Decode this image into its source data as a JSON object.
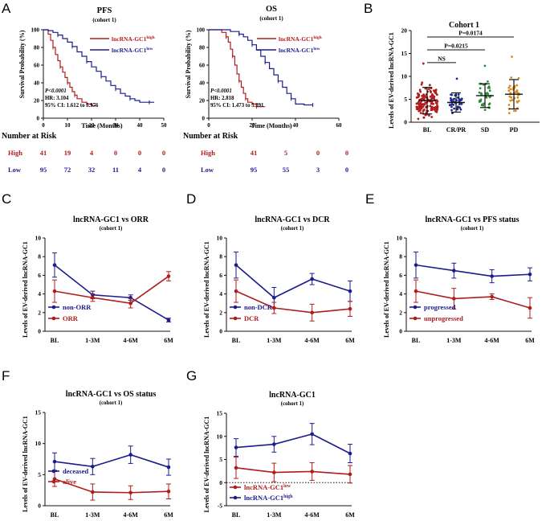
{
  "colors": {
    "red": "#b01c1c",
    "blue": "#1c1c8c",
    "navy": "#1f2a8a",
    "green": "#2e8b3e",
    "orange": "#d98a1e",
    "black": "#111111"
  },
  "panels": {
    "A": {
      "letter": "A",
      "pfs": {
        "title": "PFS",
        "subtitle": "(cohort 1)",
        "ylabel": "Survival Probability (%)",
        "xlabel": "Time (Months)",
        "yticks": [
          "0",
          "20",
          "40",
          "60",
          "80",
          "100"
        ],
        "xticks": [
          "0",
          "10",
          "20",
          "30",
          "40",
          "50"
        ],
        "legend_high": "lncRNA-GC1",
        "legend_high_sup": "high",
        "legend_low": "lncRNA-GC1",
        "legend_low_sup": "low",
        "stat_p": "P<0.0001",
        "stat_hr": "HR: 3.104",
        "stat_ci": "95% CI: 1.612 to 5.976",
        "risk_title": "Number at Risk",
        "risk_high_label": "High",
        "risk_low_label": "Low",
        "risk_high": [
          "41",
          "19",
          "4",
          "0",
          "0",
          "0"
        ],
        "risk_low": [
          "95",
          "72",
          "32",
          "11",
          "4",
          "0"
        ]
      },
      "os": {
        "title": "OS",
        "subtitle": "(cohort 1)",
        "ylabel": "Survival Probability (%)",
        "xlabel": "Time (Months)",
        "yticks": [
          "0",
          "20",
          "40",
          "60",
          "80",
          "100"
        ],
        "xticks": [
          "0",
          "20",
          "40",
          "60"
        ],
        "legend_high": "lncRNA-GC1",
        "legend_high_sup": "high",
        "legend_low": "lncRNA-GC1",
        "legend_low_sup": "low",
        "stat_p": "P<0.0001",
        "stat_hr": "HR: 2.818",
        "stat_ci": "95% CI: 1.473 to 5.391",
        "risk_title": "Number at Risk",
        "risk_high_label": "High",
        "risk_low_label": "Low",
        "risk_high": [
          "41",
          "5",
          "0",
          "0"
        ],
        "risk_low": [
          "95",
          "55",
          "3",
          "0"
        ]
      }
    },
    "B": {
      "letter": "B",
      "title": "Cohort 1",
      "ylabel": "Levels of EV-derived lncRNA-GC1",
      "yticks": [
        "0",
        "5",
        "10",
        "15",
        "20"
      ],
      "groups": [
        "BL",
        "CR/PR",
        "SD",
        "PD"
      ],
      "sig": [
        {
          "label": "P=0.0174"
        },
        {
          "label": "P=0.0215"
        },
        {
          "label": "NS"
        }
      ]
    },
    "C": {
      "letter": "C",
      "title": "lncRNA-GC1 vs ORR",
      "subtitle": "(cohort 1)",
      "legend1": "non-ORR",
      "legend2": "ORR"
    },
    "D": {
      "letter": "D",
      "title": "lncRNA-GC1 vs DCR",
      "subtitle": "(cohort 1)",
      "legend1": "non-DCR",
      "legend2": "DCR"
    },
    "E": {
      "letter": "E",
      "title": "lncRNA-GC1 vs PFS status",
      "subtitle": "(cohort 1)",
      "legend1": "progressed",
      "legend2": "unprogressed"
    },
    "F": {
      "letter": "F",
      "title": "lncRNA-GC1 vs OS status",
      "subtitle": "(cohort 1)",
      "legend1": "deceased",
      "legend2": "alive"
    },
    "G": {
      "letter": "G",
      "title": "lncRNA-GC1",
      "subtitle": "(cohort 1)",
      "legend1": "lncRNA-GC1",
      "legend1_sup": "low",
      "legend2": "lncRNA-GC1",
      "legend2_sup": "high"
    }
  },
  "line_ylabel": "Levels of EV-derived lncRNA-GC1",
  "chart_data": [
    {
      "id": "A-PFS",
      "type": "line",
      "title": "PFS",
      "xlabel": "Time (Months)",
      "ylabel": "Survival Probability (%)",
      "xlim": [
        0,
        50
      ],
      "ylim": [
        0,
        100
      ],
      "series": [
        {
          "name": "lncRNA-GC1 high",
          "color": "red",
          "x": [
            0,
            2,
            3,
            4,
            5,
            6,
            7,
            8,
            9,
            10,
            11,
            12,
            13,
            14,
            16,
            18,
            20,
            22
          ],
          "y": [
            100,
            95,
            88,
            80,
            72,
            65,
            58,
            52,
            46,
            40,
            35,
            30,
            26,
            22,
            18,
            16,
            14,
            14
          ]
        },
        {
          "name": "lncRNA-GC1 low",
          "color": "blue",
          "x": [
            0,
            2,
            4,
            6,
            8,
            10,
            12,
            14,
            16,
            18,
            20,
            22,
            24,
            26,
            28,
            30,
            32,
            34,
            36,
            38,
            40,
            44,
            46
          ],
          "y": [
            100,
            99,
            97,
            94,
            90,
            86,
            81,
            75,
            70,
            64,
            58,
            53,
            47,
            42,
            37,
            33,
            28,
            25,
            22,
            20,
            18,
            18,
            18
          ]
        }
      ]
    },
    {
      "id": "A-OS",
      "type": "line",
      "title": "OS",
      "xlabel": "Time (Months)",
      "ylabel": "Survival Probability (%)",
      "xlim": [
        0,
        60
      ],
      "ylim": [
        0,
        100
      ],
      "series": [
        {
          "name": "lncRNA-GC1 high",
          "color": "red",
          "x": [
            0,
            4,
            6,
            8,
            9,
            10,
            11,
            12,
            13,
            14,
            15,
            16,
            17,
            18,
            20,
            22,
            24,
            26
          ],
          "y": [
            100,
            100,
            97,
            92,
            86,
            78,
            70,
            60,
            50,
            42,
            35,
            28,
            22,
            18,
            16,
            13,
            13,
            13
          ]
        },
        {
          "name": "lncRNA-GC1 low",
          "color": "blue",
          "x": [
            0,
            6,
            10,
            14,
            16,
            18,
            20,
            22,
            24,
            26,
            28,
            30,
            32,
            34,
            36,
            38,
            40,
            44,
            48
          ],
          "y": [
            100,
            100,
            98,
            95,
            92,
            88,
            83,
            77,
            70,
            63,
            56,
            49,
            42,
            35,
            28,
            22,
            16,
            15,
            15
          ]
        }
      ]
    },
    {
      "id": "B",
      "type": "scatter",
      "title": "Cohort 1",
      "ylabel": "Levels of EV-derived lncRNA-GC1",
      "ylim": [
        0,
        20
      ],
      "categories": [
        "BL",
        "CR/PR",
        "SD",
        "PD"
      ],
      "series": [
        {
          "name": "BL",
          "color": "red",
          "n": 136,
          "mean": 4.7,
          "sd": 2.9,
          "max": 12.8
        },
        {
          "name": "CR/PR",
          "color": "navy",
          "n": 45,
          "mean": 4.3,
          "sd": 2.1,
          "max": 9.5
        },
        {
          "name": "SD",
          "color": "green",
          "n": 38,
          "mean": 5.8,
          "sd": 2.6,
          "max": 12.3
        },
        {
          "name": "PD",
          "color": "orange",
          "n": 40,
          "mean": 6.1,
          "sd": 3.2,
          "max": 14.3
        }
      ],
      "comparisons": [
        {
          "a": "BL",
          "b": "PD",
          "label": "P=0.0174"
        },
        {
          "a": "BL",
          "b": "SD",
          "label": "P=0.0215"
        },
        {
          "a": "BL",
          "b": "CR/PR",
          "label": "NS"
        }
      ]
    },
    {
      "id": "C",
      "type": "line",
      "title": "lncRNA-GC1 vs ORR",
      "categories": [
        "BL",
        "1-3M",
        "4-6M",
        "6M"
      ],
      "ylim": [
        0,
        10
      ],
      "yticks": [
        0,
        2,
        4,
        6,
        8,
        10
      ],
      "series": [
        {
          "name": "non-ORR",
          "color": "blue",
          "values": [
            7.1,
            3.9,
            3.6,
            1.2
          ],
          "err": [
            1.3,
            0.4,
            0.3,
            0.2
          ]
        },
        {
          "name": "ORR",
          "color": "red",
          "values": [
            4.3,
            3.6,
            3.0,
            5.9
          ],
          "err": [
            1.2,
            0.4,
            0.5,
            0.5
          ]
        }
      ]
    },
    {
      "id": "D",
      "type": "line",
      "title": "lncRNA-GC1 vs DCR",
      "categories": [
        "BL",
        "1-3M",
        "4-6M",
        "6M"
      ],
      "ylim": [
        0,
        10
      ],
      "yticks": [
        0,
        2,
        4,
        6,
        8,
        10
      ],
      "series": [
        {
          "name": "non-DCR",
          "color": "blue",
          "values": [
            7.1,
            3.6,
            5.6,
            4.3
          ],
          "err": [
            1.4,
            1.1,
            0.6,
            1.1
          ]
        },
        {
          "name": "DCR",
          "color": "red",
          "values": [
            4.3,
            2.5,
            2.0,
            2.4
          ],
          "err": [
            1.2,
            0.6,
            0.9,
            0.8
          ]
        }
      ]
    },
    {
      "id": "E",
      "type": "line",
      "title": "lncRNA-GC1 vs PFS status",
      "categories": [
        "BL",
        "1-3M",
        "4-6M",
        "6M"
      ],
      "ylim": [
        0,
        10
      ],
      "yticks": [
        0,
        2,
        4,
        6,
        8,
        10
      ],
      "series": [
        {
          "name": "progressed",
          "color": "blue",
          "values": [
            7.1,
            6.5,
            5.9,
            6.1
          ],
          "err": [
            1.4,
            0.8,
            0.7,
            0.7
          ]
        },
        {
          "name": "unprogressed",
          "color": "red",
          "values": [
            4.3,
            3.5,
            3.7,
            2.5
          ],
          "err": [
            1.2,
            1.1,
            0.3,
            1.1
          ]
        }
      ]
    },
    {
      "id": "F",
      "type": "line",
      "title": "lncRNA-GC1 vs OS status",
      "categories": [
        "BL",
        "1-3M",
        "4-6M",
        "6M"
      ],
      "ylim": [
        0,
        15
      ],
      "yticks": [
        0,
        5,
        10,
        15
      ],
      "series": [
        {
          "name": "deceased",
          "color": "blue",
          "values": [
            7.1,
            6.3,
            8.2,
            6.2
          ],
          "err": [
            1.4,
            1.3,
            1.4,
            1.3
          ]
        },
        {
          "name": "alive",
          "color": "red",
          "values": [
            4.3,
            2.2,
            2.1,
            2.3
          ],
          "err": [
            1.2,
            1.3,
            1.1,
            1.2
          ]
        }
      ]
    },
    {
      "id": "G",
      "type": "line",
      "title": "lncRNA-GC1",
      "categories": [
        "BL",
        "1-3M",
        "4-6M",
        "6M"
      ],
      "ylim": [
        -5,
        15
      ],
      "yticks": [
        -5,
        0,
        5,
        10,
        15
      ],
      "series": [
        {
          "name": "lncRNA-GC1 low",
          "color": "red",
          "values": [
            3.2,
            2.2,
            2.4,
            1.8
          ],
          "err": [
            2.3,
            2.0,
            1.9,
            1.9
          ]
        },
        {
          "name": "lncRNA-GC1 high",
          "color": "blue",
          "values": [
            7.6,
            8.3,
            10.5,
            6.3
          ],
          "err": [
            1.9,
            1.7,
            2.3,
            2.0
          ]
        }
      ]
    }
  ]
}
